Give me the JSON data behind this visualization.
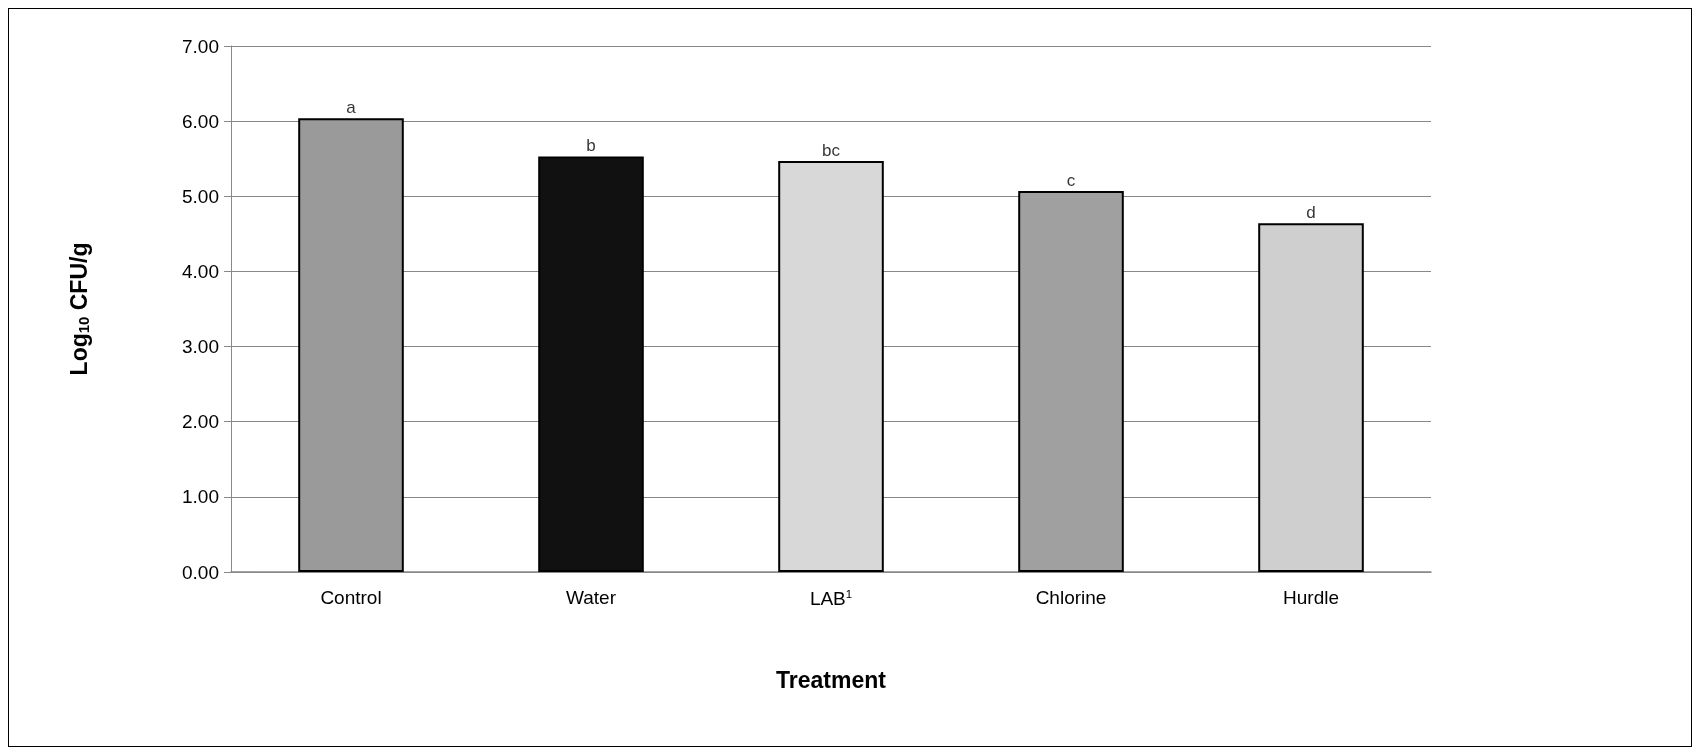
{
  "chart_data": {
    "type": "bar",
    "xlabel": "Treatment",
    "ylabel": "Log$_{10}$ CFU/g",
    "categories": [
      "Control",
      "Water",
      "LAB$^{1}$",
      "Chlorine",
      "Hurdle"
    ],
    "values": [
      6.04,
      5.53,
      5.47,
      5.07,
      4.64
    ],
    "colors": [
      "#9a9a9a",
      "#111111",
      "#d8d8d8",
      "#a0a0a0",
      "#cfcfcf"
    ],
    "ylim": [
      0,
      7
    ],
    "yticks": [
      {
        "value": 0,
        "label": "0.00"
      },
      {
        "value": 1,
        "label": "1.00"
      },
      {
        "value": 2,
        "label": "2.00"
      },
      {
        "value": 3,
        "label": "3.00"
      },
      {
        "value": 4,
        "label": "4.00"
      },
      {
        "value": 5,
        "label": "5.00"
      },
      {
        "value": 6,
        "label": "6.00"
      },
      {
        "value": 7,
        "label": "7.00"
      }
    ],
    "grid": "y",
    "annotations": [
      {
        "text": "a",
        "x": "Control",
        "y": 6.04
      },
      {
        "text": "b",
        "x": "Water",
        "y": 5.53
      },
      {
        "text": "bc",
        "x": "LAB$^{1}$",
        "y": 5.47
      },
      {
        "text": "c",
        "x": "Chlorine",
        "y": 5.07
      },
      {
        "text": "d",
        "x": "Hurdle",
        "y": 4.64
      }
    ]
  }
}
